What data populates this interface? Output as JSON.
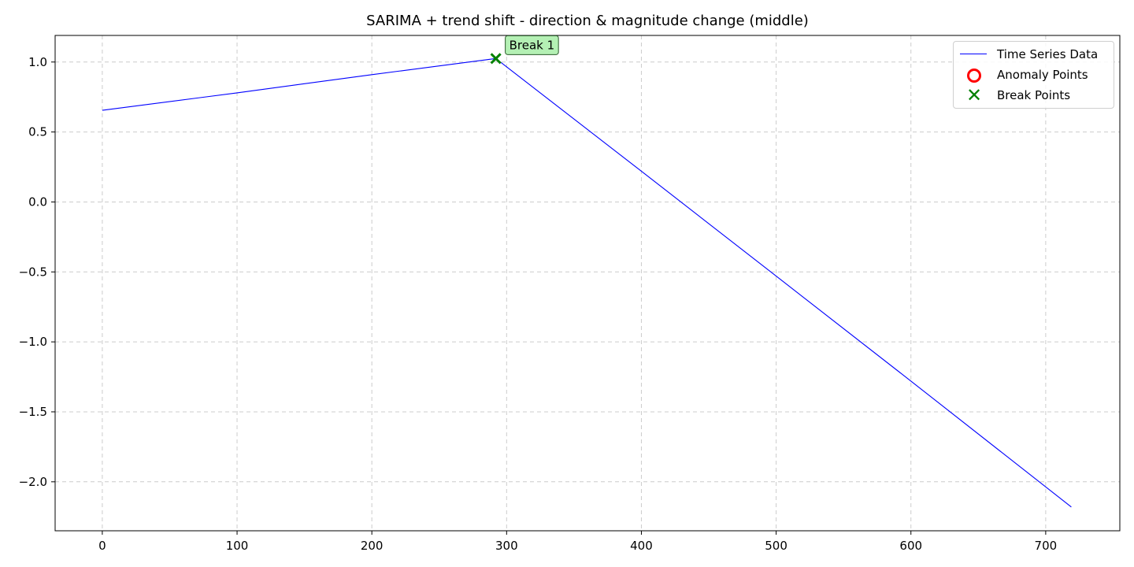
{
  "chart_data": {
    "type": "line",
    "title": "SARIMA + trend shift - direction & magnitude change (middle)",
    "xlabel": "",
    "ylabel": "",
    "xlim": [
      -35,
      755
    ],
    "ylim": [
      -2.35,
      1.19
    ],
    "xticks": [
      0,
      100,
      200,
      300,
      400,
      500,
      600,
      700
    ],
    "xtick_labels": [
      "0",
      "100",
      "200",
      "300",
      "400",
      "500",
      "600",
      "700"
    ],
    "yticks": [
      1.0,
      0.5,
      0.0,
      -0.5,
      -1.0,
      -1.5,
      -2.0
    ],
    "ytick_labels": [
      "1.0",
      "0.5",
      "0.0",
      "−0.5",
      "−1.0",
      "−1.5",
      "−2.0"
    ],
    "grid": true,
    "series": [
      {
        "name": "Time Series Data",
        "color": "#0000ff",
        "x": [
          0,
          100,
          200,
          292,
          400,
          500,
          600,
          719
        ],
        "values": [
          0.655,
          0.78,
          0.91,
          1.025,
          0.22,
          -0.53,
          -1.28,
          -2.18
        ]
      }
    ],
    "anomaly_points": [],
    "break_points": [
      {
        "x": 292,
        "y": 1.025,
        "label": "Break 1"
      }
    ],
    "legend": {
      "placement": "top-right",
      "entries": [
        {
          "label": "Time Series Data",
          "symbol": "line",
          "color": "#0000ff"
        },
        {
          "label": "Anomaly Points",
          "symbol": "circle",
          "color": "#ff0000"
        },
        {
          "label": "Break Points",
          "symbol": "x",
          "color": "#008000"
        }
      ]
    }
  }
}
